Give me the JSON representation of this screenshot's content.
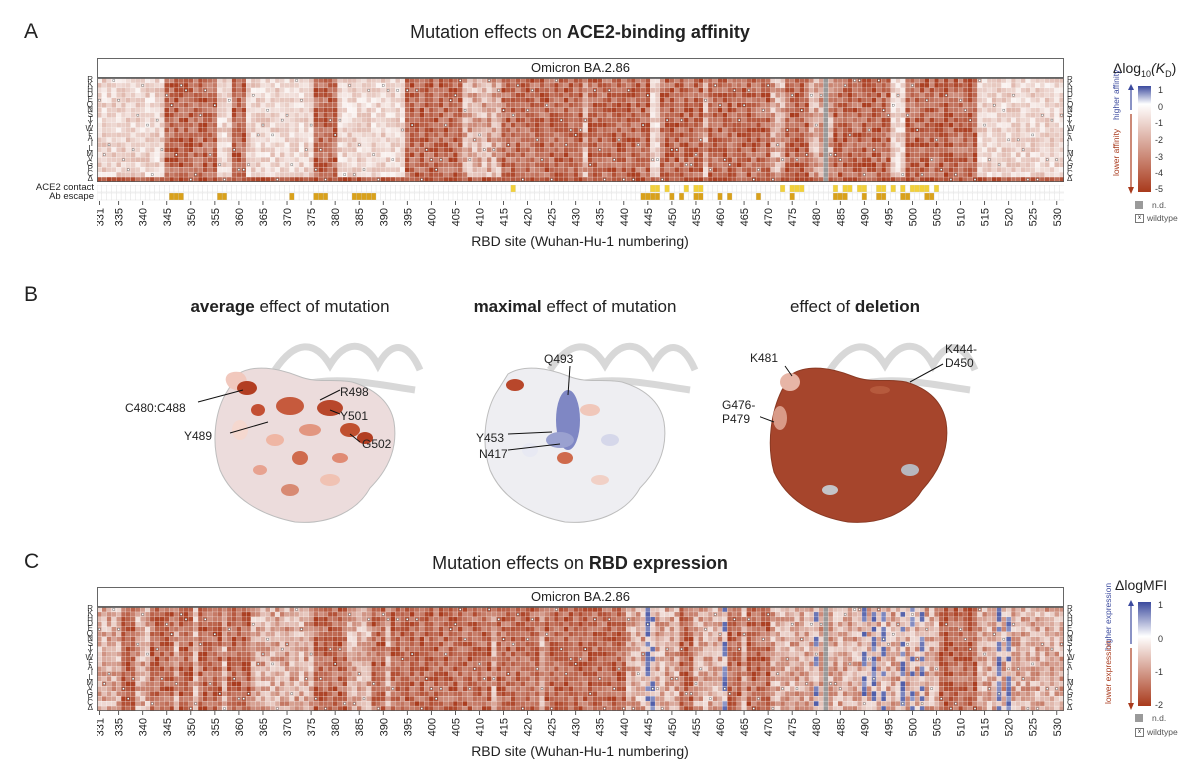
{
  "panel_a": {
    "letter": "A",
    "title_plain": "Mutation effects on ",
    "title_bold": "ACE2-binding affinity",
    "variant": "Omicron BA.2.86",
    "annotation_rows": [
      "ACE2 contact",
      "Ab escape"
    ],
    "xlabel": "RBD site (Wuhan-Hu-1 numbering)",
    "legend": {
      "title_pre": "Δlog",
      "title_sub": "10",
      "title_post": "(K",
      "title_sub2": "D",
      "title_end": ")",
      "up_label": "higher affinity",
      "down_label": "lower affinity",
      "ticks": [
        "1",
        "0",
        "-1",
        "-2",
        "-3",
        "-4",
        "-5"
      ],
      "nd_label": "n.d.",
      "wt_label": "wildtype"
    }
  },
  "panel_b": {
    "letter": "B",
    "sub1_bold": "average",
    "sub1_rest": " effect of mutation",
    "sub2_bold": "maximal",
    "sub2_rest": " effect of mutation",
    "sub3_rest": "effect of ",
    "sub3_bold": "deletion",
    "callouts1": [
      "C480:C488",
      "R498",
      "Y501",
      "Y489",
      "G502"
    ],
    "callouts2": [
      "Q493",
      "Y453",
      "N417"
    ],
    "callouts3": [
      "K481",
      "K444-",
      "D450",
      "G476-",
      "P479"
    ]
  },
  "panel_c": {
    "letter": "C",
    "title_plain": "Mutation effects on ",
    "title_bold": "RBD expression",
    "variant": "Omicron BA.2.86",
    "xlabel": "RBD site (Wuhan-Hu-1 numbering)",
    "legend": {
      "title": "ΔlogMFI",
      "up_label": "higher expression",
      "down_label": "lower expression",
      "ticks": [
        "1",
        "0",
        "-1",
        "-2"
      ],
      "nd_label": "n.d.",
      "wt_label": "wildtype"
    }
  },
  "chart_data": [
    {
      "type": "heatmap",
      "title": "Mutation effects on ACE2-binding affinity",
      "subtitle": "Omicron BA.2.86",
      "xlabel": "RBD site (Wuhan-Hu-1 numbering)",
      "ylabel": "",
      "x_range": [
        331,
        531
      ],
      "x_ticks": [
        331,
        335,
        340,
        345,
        350,
        355,
        360,
        365,
        370,
        375,
        380,
        385,
        390,
        395,
        400,
        405,
        410,
        415,
        420,
        425,
        430,
        435,
        440,
        445,
        450,
        455,
        460,
        465,
        470,
        475,
        480,
        485,
        490,
        495,
        500,
        505,
        510,
        515,
        520,
        525,
        530
      ],
      "rows_left": [
        "R",
        "K",
        "H",
        "D",
        "E",
        "Q",
        "N",
        "S",
        "T",
        "Y",
        "W",
        "F",
        "A",
        "I",
        "L",
        "M",
        "V",
        "G",
        "P",
        "C",
        "Δ"
      ],
      "rows_right": [
        "R",
        "K",
        "H",
        "D",
        "E",
        "Q",
        "N",
        "S",
        "T",
        "Y",
        "W",
        "F",
        "A",
        "I",
        "L",
        "M",
        "V",
        "G",
        "P",
        "C",
        "Δ"
      ],
      "color_scale": {
        "min": -5,
        "max": 1,
        "low_color": "#a93a1c",
        "mid_color": "#ffffff",
        "high_color": "#3b4a9e",
        "nd_color": "#9a9a9a"
      },
      "strong_negative_site_ranges": [
        [
          345,
          355
        ],
        [
          359,
          361
        ],
        [
          376,
          380
        ],
        [
          395,
          406
        ],
        [
          415,
          431
        ],
        [
          433,
          445
        ],
        [
          448,
          456
        ],
        [
          458,
          470
        ],
        [
          474,
          478
        ],
        [
          484,
          495
        ],
        [
          499,
          513
        ]
      ],
      "mild_site_ranges": [
        [
          331,
          344
        ],
        [
          356,
          358
        ],
        [
          362,
          375
        ],
        [
          381,
          394
        ],
        [
          446,
          447
        ],
        [
          496,
          498
        ],
        [
          514,
          531
        ]
      ],
      "not_determined_sites": [
        482
      ],
      "annotation_ace2_contact_sites": [
        417,
        446,
        447,
        449,
        453,
        455,
        456,
        473,
        475,
        476,
        477,
        484,
        486,
        487,
        489,
        490,
        493,
        494,
        496,
        498,
        500,
        501,
        502,
        503,
        505
      ],
      "annotation_ab_escape_sites": [
        346,
        347,
        348,
        356,
        357,
        371,
        376,
        377,
        378,
        384,
        385,
        386,
        387,
        388,
        444,
        445,
        446,
        447,
        450,
        452,
        455,
        456,
        460,
        462,
        468,
        475,
        484,
        485,
        486,
        490,
        493,
        494,
        498,
        499,
        503,
        504
      ]
    },
    {
      "type": "heatmap",
      "title": "Mutation effects on RBD expression",
      "subtitle": "Omicron BA.2.86",
      "xlabel": "RBD site (Wuhan-Hu-1 numbering)",
      "ylabel": "",
      "x_range": [
        331,
        531
      ],
      "x_ticks": [
        331,
        335,
        340,
        345,
        350,
        355,
        360,
        365,
        370,
        375,
        380,
        385,
        390,
        395,
        400,
        405,
        410,
        415,
        420,
        425,
        430,
        435,
        440,
        445,
        450,
        455,
        460,
        465,
        470,
        475,
        480,
        485,
        490,
        495,
        500,
        505,
        510,
        515,
        520,
        525,
        530
      ],
      "rows_left": [
        "R",
        "K",
        "H",
        "D",
        "E",
        "Q",
        "N",
        "S",
        "T",
        "Y",
        "W",
        "F",
        "A",
        "I",
        "L",
        "M",
        "V",
        "G",
        "P",
        "C",
        "Δ"
      ],
      "rows_right": [
        "R",
        "K",
        "H",
        "D",
        "E",
        "Q",
        "N",
        "S",
        "T",
        "Y",
        "W",
        "F",
        "A",
        "I",
        "L",
        "M",
        "V",
        "G",
        "P",
        "C",
        "Δ"
      ],
      "color_scale": {
        "min": -2,
        "max": 1,
        "low_color": "#a93a1c",
        "mid_color": "#ffffff",
        "high_color": "#3b4a9e",
        "nd_color": "#9a9a9a"
      },
      "strong_negative_site_ranges": [
        [
          336,
          338
        ],
        [
          342,
          346
        ],
        [
          348,
          350
        ],
        [
          352,
          356
        ],
        [
          358,
          362
        ],
        [
          376,
          382
        ],
        [
          388,
          390
        ],
        [
          392,
          412
        ],
        [
          414,
          422
        ],
        [
          424,
          440
        ],
        [
          452,
          454
        ],
        [
          462,
          464
        ],
        [
          466,
          470
        ],
        [
          506,
          513
        ]
      ],
      "higher_expression_sites": [
        445,
        446,
        461,
        480,
        490,
        492,
        494,
        498,
        500,
        502,
        518,
        520
      ],
      "not_determined_sites": [
        482
      ]
    }
  ],
  "colors": {
    "negative_dark": "#a93a1c",
    "positive_dark": "#3b4a9e",
    "not_determined": "#9a9a9a",
    "ace2_contact": "#f2d13a",
    "ab_escape": "#d9a11b",
    "surface_avg": "#e9e3e3",
    "surface_deletion": "#a6452c"
  }
}
